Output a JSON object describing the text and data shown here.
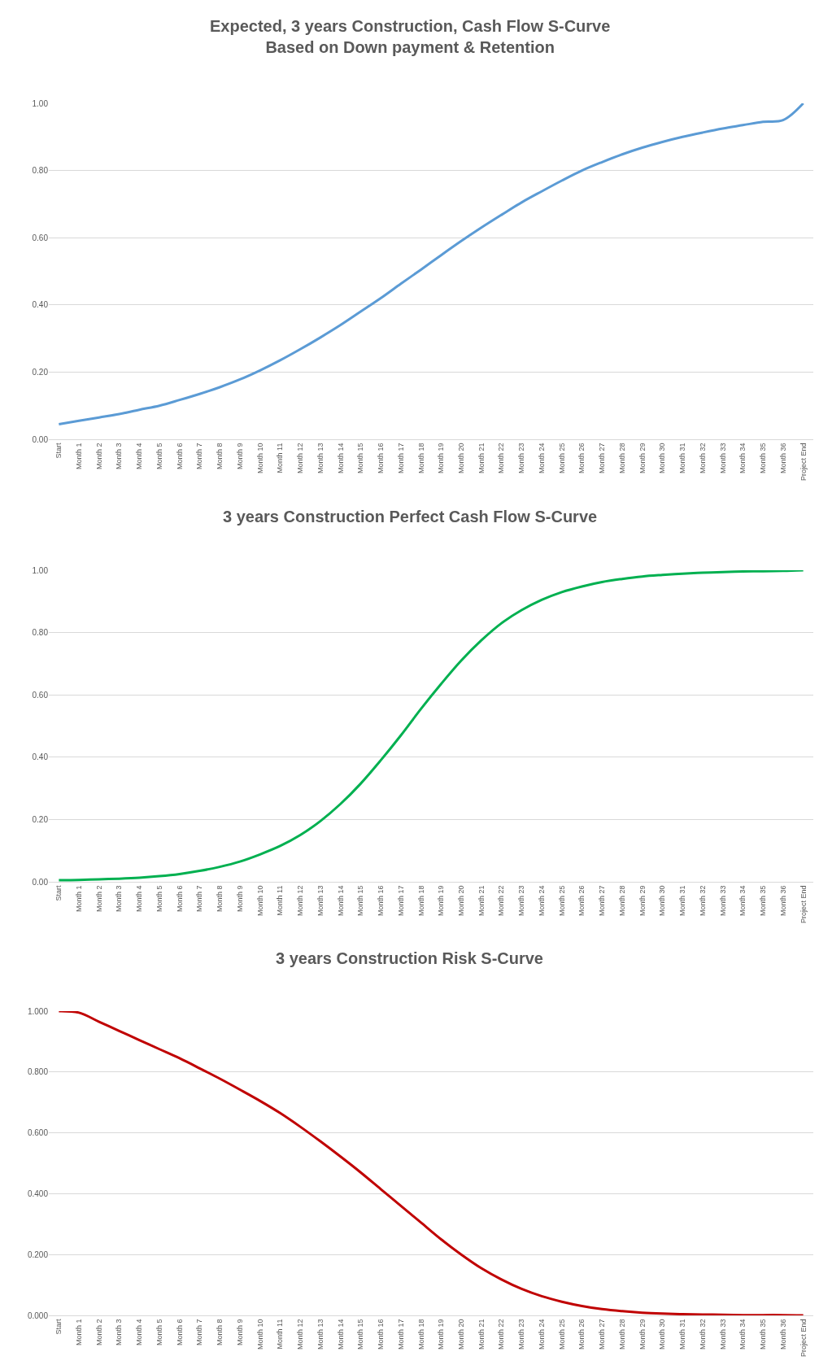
{
  "chart_data": [
    {
      "type": "line",
      "title": "Expected, 3 years Construction, Cash Flow S-Curve\nBased on Down payment & Retention",
      "categories": [
        "Start",
        "Month 1",
        "Month 2",
        "Month 3",
        "Month 4",
        "Month 5",
        "Month 6",
        "Month 7",
        "Month 8",
        "Month 9",
        "Month 10",
        "Month 11",
        "Month 12",
        "Month 13",
        "Month 14",
        "Month 15",
        "Month 16",
        "Month 17",
        "Month 18",
        "Month 19",
        "Month 20",
        "Month 21",
        "Month 22",
        "Month 23",
        "Month 24",
        "Month 25",
        "Month 26",
        "Month 27",
        "Month 28",
        "Month 29",
        "Month 30",
        "Month 31",
        "Month 32",
        "Month 33",
        "Month 34",
        "Month 35",
        "Month 36",
        "Project End"
      ],
      "series": [
        {
          "color": "#5b9bd5",
          "values": [
            0.045,
            0.055,
            0.065,
            0.075,
            0.088,
            0.1,
            0.117,
            0.135,
            0.155,
            0.178,
            0.205,
            0.235,
            0.268,
            0.303,
            0.34,
            0.38,
            0.42,
            0.463,
            0.505,
            0.548,
            0.59,
            0.63,
            0.668,
            0.705,
            0.738,
            0.77,
            0.8,
            0.825,
            0.848,
            0.868,
            0.885,
            0.9,
            0.913,
            0.925,
            0.935,
            0.945,
            0.95,
            1.0
          ]
        }
      ],
      "ylim": [
        0,
        1
      ],
      "yticks": [
        {
          "value": 0,
          "label": "0.00"
        },
        {
          "value": 0.2,
          "label": "0.20"
        },
        {
          "value": 0.4,
          "label": "0.40"
        },
        {
          "value": 0.6,
          "label": "0.60"
        },
        {
          "value": 0.8,
          "label": "0.80"
        },
        {
          "value": 1,
          "label": "1.00"
        }
      ],
      "grid": "y"
    },
    {
      "type": "line",
      "title": "3 years Construction Perfect Cash Flow S-Curve",
      "categories": [
        "Start",
        "Month 1",
        "Month 2",
        "Month 3",
        "Month 4",
        "Month 5",
        "Month 6",
        "Month 7",
        "Month 8",
        "Month 9",
        "Month 10",
        "Month 11",
        "Month 12",
        "Month 13",
        "Month 14",
        "Month 15",
        "Month 16",
        "Month 17",
        "Month 18",
        "Month 19",
        "Month 20",
        "Month 21",
        "Month 22",
        "Month 23",
        "Month 24",
        "Month 25",
        "Month 26",
        "Month 27",
        "Month 28",
        "Month 29",
        "Month 30",
        "Month 31",
        "Month 32",
        "Month 33",
        "Month 34",
        "Month 35",
        "Month 36",
        "Project End"
      ],
      "series": [
        {
          "color": "#00b050",
          "values": [
            0.005,
            0.006,
            0.008,
            0.01,
            0.013,
            0.018,
            0.025,
            0.035,
            0.048,
            0.065,
            0.088,
            0.115,
            0.15,
            0.195,
            0.25,
            0.315,
            0.39,
            0.47,
            0.555,
            0.635,
            0.71,
            0.775,
            0.83,
            0.872,
            0.905,
            0.93,
            0.948,
            0.962,
            0.972,
            0.98,
            0.985,
            0.989,
            0.992,
            0.994,
            0.996,
            0.997,
            0.998,
            1.0
          ]
        }
      ],
      "ylim": [
        0,
        1
      ],
      "yticks": [
        {
          "value": 0,
          "label": "0.00"
        },
        {
          "value": 0.2,
          "label": "0.20"
        },
        {
          "value": 0.4,
          "label": "0.40"
        },
        {
          "value": 0.6,
          "label": "0.60"
        },
        {
          "value": 0.8,
          "label": "0.80"
        },
        {
          "value": 1,
          "label": "1.00"
        }
      ],
      "grid": "y"
    },
    {
      "type": "line",
      "title": "3 years Construction Risk S-Curve",
      "categories": [
        "Start",
        "Month 1",
        "Month 2",
        "Month 3",
        "Month 4",
        "Month 5",
        "Month 6",
        "Month 7",
        "Month 8",
        "Month 9",
        "Month 10",
        "Month 11",
        "Month 12",
        "Month 13",
        "Month 14",
        "Month 15",
        "Month 16",
        "Month 17",
        "Month 18",
        "Month 19",
        "Month 20",
        "Month 21",
        "Month 22",
        "Month 23",
        "Month 24",
        "Month 25",
        "Month 26",
        "Month 27",
        "Month 28",
        "Month 29",
        "Month 30",
        "Month 31",
        "Month 32",
        "Month 33",
        "Month 34",
        "Month 35",
        "Month 36",
        "Project End"
      ],
      "series": [
        {
          "color": "#c00000",
          "values": [
            1.0,
            0.995,
            0.965,
            0.935,
            0.905,
            0.875,
            0.845,
            0.812,
            0.778,
            0.742,
            0.705,
            0.665,
            0.62,
            0.572,
            0.522,
            0.47,
            0.415,
            0.36,
            0.305,
            0.25,
            0.2,
            0.155,
            0.118,
            0.087,
            0.063,
            0.045,
            0.031,
            0.021,
            0.014,
            0.009,
            0.006,
            0.004,
            0.003,
            0.002,
            0.001,
            0.001,
            0.001,
            0.0
          ]
        }
      ],
      "ylim": [
        0,
        1
      ],
      "yticks": [
        {
          "value": 0,
          "label": "0.000"
        },
        {
          "value": 0.2,
          "label": "0.200"
        },
        {
          "value": 0.4,
          "label": "0.400"
        },
        {
          "value": 0.6,
          "label": "0.600"
        },
        {
          "value": 0.8,
          "label": "0.800"
        },
        {
          "value": 1,
          "label": "1.000"
        }
      ],
      "grid": "y"
    }
  ]
}
